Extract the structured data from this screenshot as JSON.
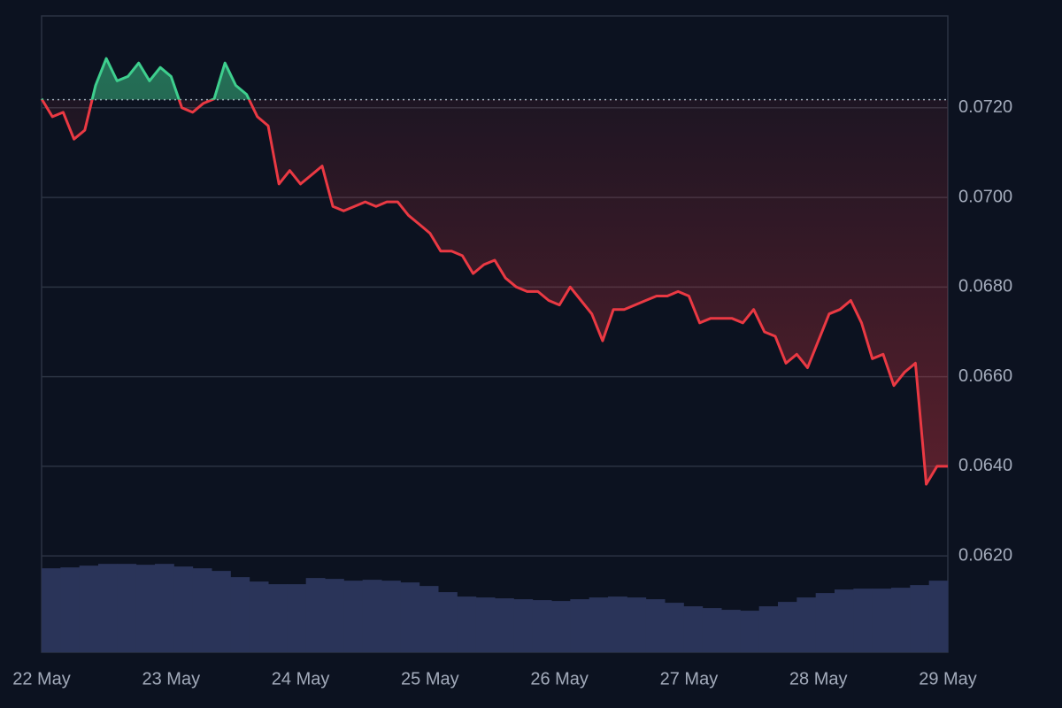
{
  "chart_data": {
    "type": "line",
    "x_tick_labels": [
      "22 May",
      "23 May",
      "24 May",
      "25 May",
      "26 May",
      "27 May",
      "28 May",
      "29 May"
    ],
    "ylim": [
      0.05985,
      0.07405
    ],
    "yticks": [
      {
        "value": 0.062,
        "label": "0.0620"
      },
      {
        "value": 0.064,
        "label": "0.0640"
      },
      {
        "value": 0.066,
        "label": "0.0660"
      },
      {
        "value": 0.068,
        "label": "0.0680"
      },
      {
        "value": 0.07,
        "label": "0.0700"
      },
      {
        "value": 0.072,
        "label": "0.0720"
      }
    ],
    "grid": true,
    "baseline": 0.07218,
    "up_color": "#3ecf8e",
    "down_color": "#ea3943",
    "series": [
      {
        "color": "#ea3943",
        "values": [
          0.0722,
          0.0718,
          0.0719,
          0.0713,
          0.0715,
          0.0725,
          0.0731,
          0.0726,
          0.0727,
          0.073,
          0.0726,
          0.0729,
          0.0727,
          0.072,
          0.0719,
          0.0721,
          0.0722,
          0.073,
          0.0725,
          0.0723,
          0.0718,
          0.0716,
          0.0703,
          0.0706,
          0.0703,
          0.0705,
          0.0707,
          0.0698,
          0.0697,
          0.0698,
          0.0699,
          0.0698,
          0.0699,
          0.0699,
          0.0696,
          0.0694,
          0.0692,
          0.0688,
          0.0688,
          0.0687,
          0.0683,
          0.0685,
          0.0686,
          0.0682,
          0.068,
          0.0679,
          0.0679,
          0.0677,
          0.0676,
          0.068,
          0.0677,
          0.0674,
          0.0668,
          0.0675,
          0.0675,
          0.0676,
          0.0677,
          0.0678,
          0.0678,
          0.0679,
          0.0678,
          0.0672,
          0.0673,
          0.0673,
          0.0673,
          0.0672,
          0.0675,
          0.067,
          0.0669,
          0.0663,
          0.0665,
          0.0662,
          0.0668,
          0.0674,
          0.0675,
          0.0677,
          0.0672,
          0.0664,
          0.0665,
          0.0658,
          0.0661,
          0.0663,
          0.0636,
          0.064,
          0.064
        ]
      }
    ],
    "volume": {
      "color": "#2a3459",
      "ylim": [
        0,
        720
      ],
      "values": [
        95,
        96,
        98,
        100,
        100,
        99,
        100,
        97,
        95,
        92,
        85,
        80,
        77,
        77,
        84,
        83,
        81,
        82,
        81,
        79,
        75,
        68,
        63,
        62,
        61,
        60,
        59,
        58,
        60,
        62,
        63,
        62,
        60,
        56,
        52,
        50,
        48,
        47,
        52,
        57,
        62,
        67,
        71,
        72,
        72,
        73,
        76,
        81
      ]
    }
  }
}
